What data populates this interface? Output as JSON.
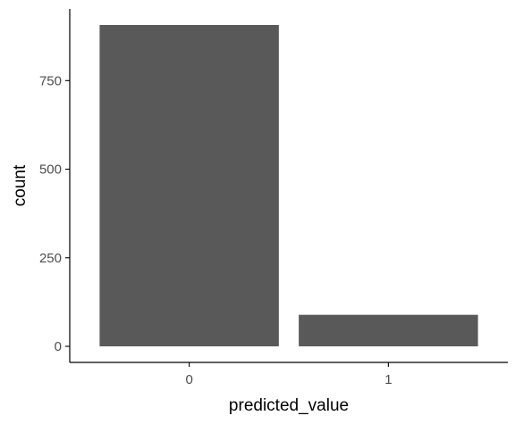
{
  "chart_data": {
    "type": "bar",
    "categories": [
      "0",
      "1"
    ],
    "values": [
      907,
      89
    ],
    "xlabel": "predicted_value",
    "ylabel": "count",
    "ylim": [
      0,
      907
    ],
    "yticks": [
      0,
      250,
      500,
      750
    ],
    "grid": false,
    "legend": "none"
  },
  "colors": {
    "bar": "#595959",
    "axis": "#000000",
    "tick_label": "#4d4d4d",
    "background": "#ffffff"
  }
}
